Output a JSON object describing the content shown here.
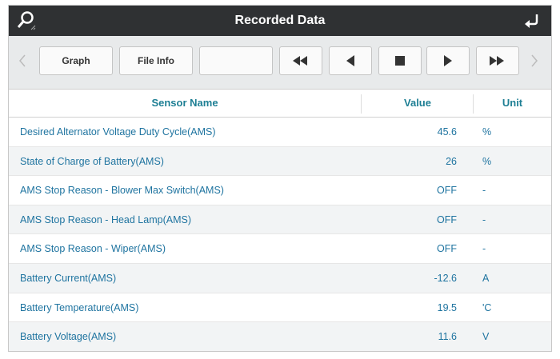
{
  "header": {
    "title": "Recorded Data"
  },
  "toolbar": {
    "buttons": [
      "Graph",
      "File Info"
    ]
  },
  "table": {
    "columns": [
      "Sensor Name",
      "Value",
      "Unit"
    ],
    "rows": [
      [
        "Desired Alternator Voltage Duty Cycle(AMS)",
        "45.6",
        "%"
      ],
      [
        "State of Charge of Battery(AMS)",
        "26",
        "%"
      ],
      [
        "AMS Stop Reason - Blower Max Switch(AMS)",
        "OFF",
        "-"
      ],
      [
        "AMS Stop Reason - Head Lamp(AMS)",
        "OFF",
        "-"
      ],
      [
        "AMS Stop Reason - Wiper(AMS)",
        "OFF",
        "-"
      ],
      [
        "Battery Current(AMS)",
        "-12.6",
        "A"
      ],
      [
        "Battery Temperature(AMS)",
        "19.5",
        "'C"
      ],
      [
        "Battery Voltage(AMS)",
        "11.6",
        "V"
      ]
    ]
  }
}
